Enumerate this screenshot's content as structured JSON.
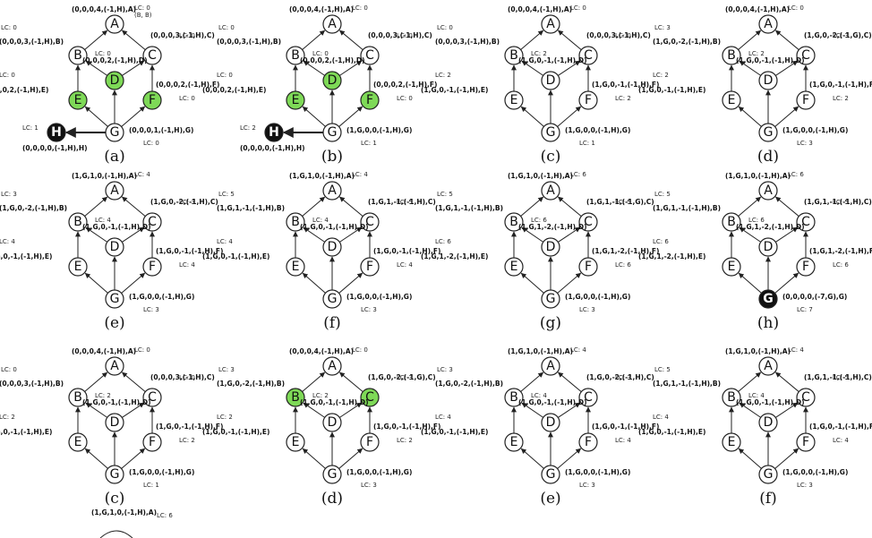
{
  "colors": {
    "green": "#7ed957",
    "black": "#111111",
    "white": "#ffffff",
    "edge": "#222222"
  },
  "nodes": [
    "A",
    "B",
    "C",
    "D",
    "E",
    "F",
    "G",
    "H"
  ],
  "panels": [
    {
      "caption": "(a)",
      "labels": {
        "A": "(0,0,0,4,(-1,H),A)",
        "B": "(0,0,0,3,(-1,H),B)",
        "C": "(0,0,0,3,(-1,H),C)",
        "D": "(0,0,0,2,(-1,H),D)",
        "E": "(0,0,0,2,(-1,H),E)",
        "F": "(0,0,0,2,(-1,H),F)",
        "G": "(0,0,0,1,(-1,H),G)",
        "H": "(0,0,0,0,(-1,H),H)"
      },
      "lc": {
        "A": "LC: 0",
        "B": "LC: 0",
        "C": "LC: 0",
        "D": "LC: 0",
        "E": "LC: 0",
        "F": "LC: 0",
        "G": "LC: 0",
        "H": "LC: 1"
      },
      "extra": "(B, B)",
      "fill": {
        "D": "green",
        "E": "green",
        "F": "green",
        "H": "black"
      }
    },
    {
      "caption": "(b)",
      "labels": {
        "A": "(0,0,0,4,(-1,H),A)",
        "B": "(0,0,0,3,(-1,H),B)",
        "C": "(0,0,0,3,(-1,H),C)",
        "D": "(0,0,0,2,(-1,H),D)",
        "E": "(0,0,0,2,(-1,H),E)",
        "F": "(0,0,0,2,(-1,H),F)",
        "G": "(1,G,0,0,(-1,H),G)",
        "H": "(0,0,0,0,(-1,H),H)"
      },
      "lc": {
        "A": "LC: 0",
        "B": "LC: 0",
        "C": "LC: 0",
        "D": "LC: 0",
        "E": "LC: 0",
        "F": "LC: 0",
        "G": "LC: 1",
        "H": "LC: 2"
      },
      "fill": {
        "D": "green",
        "E": "green",
        "F": "green",
        "H": "black"
      }
    },
    {
      "caption": "(c)",
      "labels": {
        "A": "(0,0,0,4,(-1,H),A)",
        "B": "(0,0,0,3,(-1,H),B)",
        "C": "(0,0,0,3,(-1,H),C)",
        "D": "(1,G,0,-1,(-1,H),D)",
        "E": "(1,G,0,-1,(-1,H),E)",
        "F": "(1,G,0,-1,(-1,H),F)",
        "G": "(1,G,0,0,(-1,H),G)"
      },
      "lc": {
        "A": "LC: 0",
        "B": "LC: 0",
        "C": "LC: 0",
        "D": "LC: 2",
        "E": "LC: 2",
        "F": "LC: 2",
        "G": "LC: 1"
      },
      "fill": {}
    },
    {
      "caption": "(d)",
      "labels": {
        "A": "(0,0,0,4,(-1,H),A)",
        "B": "(1,G,0,-2,(-1,H),B)",
        "C": "(1,G,0,-2,(-1,G),C)",
        "D": "(1,G,0,-1,(-1,H),D)",
        "E": "(1,G,0,-1,(-1,H),E)",
        "F": "(1,G,0,-1,(-1,H),F)",
        "G": "(1,G,0,0,(-1,H),G)"
      },
      "lc": {
        "A": "LC: 0",
        "B": "LC: 3",
        "C": "LC: 3",
        "D": "LC: 2",
        "E": "LC: 2",
        "F": "LC: 2",
        "G": "LC: 3"
      },
      "fill": {}
    },
    {
      "caption": "(e)",
      "labels": {
        "A": "(1,G,1,0,(-1,H),A)",
        "B": "(1,G,0,-2,(-1,H),B)",
        "C": "(1,G,0,-2,(-1,H),C)",
        "D": "(1,G,0,-1,(-1,H),D)",
        "E": "(1,G,0,-1,(-1,H),E)",
        "F": "(1,G,0,-1,(-1,H),F)",
        "G": "(1,G,0,0,(-1,H),G)"
      },
      "lc": {
        "A": "LC: 4",
        "B": "LC: 3",
        "C": "LC: 3",
        "D": "LC: 4",
        "E": "LC: 4",
        "F": "LC: 4",
        "G": "LC: 3"
      },
      "fill": {}
    },
    {
      "caption": "(f)",
      "labels": {
        "A": "(1,G,1,0,(-1,H),A)",
        "B": "(1,G,1,-1,(-1,H),B)",
        "C": "(1,G,1,-1,(-1,H),C)",
        "D": "(1,G,0,-1,(-1,H),D)",
        "E": "(1,G,0,-1,(-1,H),E)",
        "F": "(1,G,0,-1,(-1,H),F)",
        "G": "(1,G,0,0,(-1,H),G)"
      },
      "lc": {
        "A": "LC: 4",
        "B": "LC: 5",
        "C": "LC: 5",
        "D": "LC: 4",
        "E": "LC: 4",
        "F": "LC: 4",
        "G": "LC: 3"
      },
      "fill": {}
    },
    {
      "caption": "(g)",
      "labels": {
        "A": "(1,G,1,0,(-1,H),A)",
        "B": "(1,G,1,-1,(-1,H),B)",
        "C": "(1,G,1,-1,(-1,G),C)",
        "D": "(1,G,1,-2,(-1,H),D)",
        "E": "(1,G,1,-2,(-1,H),E)",
        "F": "(1,G,1,-2,(-1,H),F)",
        "G": "(1,G,0,0,(-1,H),G)"
      },
      "lc": {
        "A": "LC: 6",
        "B": "LC: 5",
        "C": "LC: 5",
        "D": "LC: 6",
        "E": "LC: 6",
        "F": "LC: 6",
        "G": "LC: 3"
      },
      "fill": {}
    },
    {
      "caption": "(h)",
      "labels": {
        "A": "(1,G,1,0,(-1,H),A)",
        "B": "(1,G,1,-1,(-1,H),B)",
        "C": "(1,G,1,-1,(-1,H),C)",
        "D": "(1,G,1,-2,(-1,H),D)",
        "E": "(1,G,1,-2,(-1,H),E)",
        "F": "(1,G,1,-2,(-1,H),F)",
        "G": "(0,0,0,0,(-7,G),G)"
      },
      "lc": {
        "A": "LC: 6",
        "B": "LC: 5",
        "C": "LC: 5",
        "D": "LC: 6",
        "E": "LC: 6",
        "F": "LC: 6",
        "G": "LC: 7"
      },
      "fill": {
        "G": "black"
      }
    },
    {
      "caption": "(c)",
      "labels": {
        "A": "(0,0,0,4,(-1,H),A)",
        "B": "(0,0,0,3,(-1,H),B)",
        "C": "(0,0,0,3,(-1,H),C)",
        "D": "(1,G,0,-1,(-1,H),D)",
        "E": "(1,G,0,-1,(-1,H),E)",
        "F": "(1,G,0,-1,(-1,H),F)",
        "G": "(1,G,0,0,(-1,H),G)"
      },
      "lc": {
        "A": "LC: 0",
        "B": "LC: 0",
        "C": "LC: 0",
        "D": "LC: 2",
        "E": "LC: 2",
        "F": "LC: 2",
        "G": "LC: 1"
      },
      "fill": {}
    },
    {
      "caption": "(d)",
      "labels": {
        "A": "(0,0,0,4,(-1,H),A)",
        "B": "(1,G,0,-2,(-1,H),B)",
        "C": "(1,G,0,-2,(-1,G),C)",
        "D": "(1,G,0,-1,(-1,H),D)",
        "E": "(1,G,0,-1,(-1,H),E)",
        "F": "(1,G,0,-1,(-1,H),F)",
        "G": "(1,G,0,0,(-1,H),G)"
      },
      "lc": {
        "A": "LC: 0",
        "B": "LC: 3",
        "C": "LC: 3",
        "D": "LC: 2",
        "E": "LC: 2",
        "F": "LC: 2",
        "G": "LC: 3"
      },
      "fill": {
        "B": "green",
        "C": "green"
      }
    },
    {
      "caption": "(e)",
      "labels": {
        "A": "(1,G,1,0,(-1,H),A)",
        "B": "(1,G,0,-2,(-1,H),B)",
        "C": "(1,G,0,-2,(-1,H),C)",
        "D": "(1,G,0,-1,(-1,H),D)",
        "E": "(1,G,0,-1,(-1,H),E)",
        "F": "(1,G,0,-1,(-1,H),F)",
        "G": "(1,G,0,0,(-1,H),G)"
      },
      "lc": {
        "A": "LC: 4",
        "B": "LC: 3",
        "C": "LC: 3",
        "D": "LC: 4",
        "E": "LC: 4",
        "F": "LC: 4",
        "G": "LC: 3"
      },
      "fill": {}
    },
    {
      "caption": "(f)",
      "labels": {
        "A": "(1,G,1,0,(-1,H),A)",
        "B": "(1,G,1,-1,(-1,H),B)",
        "C": "(1,G,1,-1,(-1,H),C)",
        "D": "(1,G,0,-1,(-1,H),D)",
        "E": "(1,G,0,-1,(-1,H),E)",
        "F": "(1,G,0,-1,(-1,H),F)",
        "G": "(1,G,0,0,(-1,H),G)"
      },
      "lc": {
        "A": "LC: 4",
        "B": "LC: 5",
        "C": "LC: 5",
        "D": "LC: 4",
        "E": "LC: 4",
        "F": "LC: 4",
        "G": "LC: 3"
      },
      "fill": {}
    }
  ],
  "trailing": {
    "label": "(1,G,1,0,(-1,H),A)",
    "lc": "LC: 6"
  }
}
